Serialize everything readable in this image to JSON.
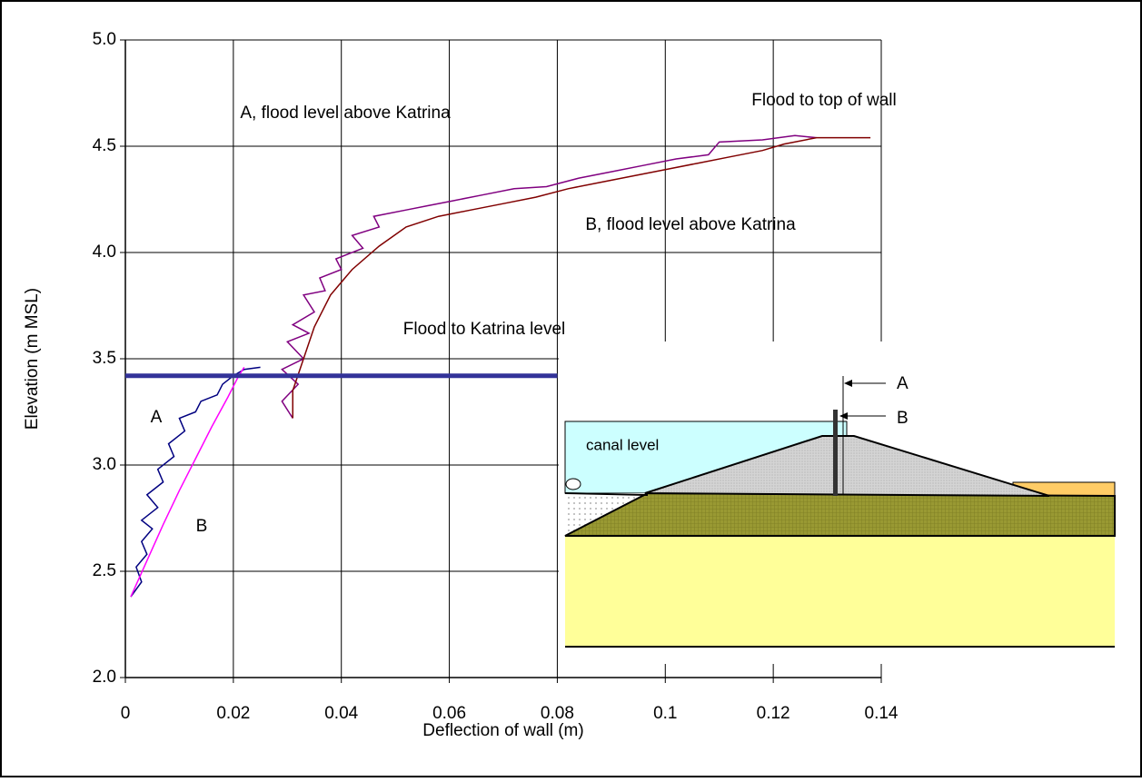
{
  "chart_data": {
    "type": "line",
    "xlabel": "Deflection of wall (m)",
    "ylabel": "Elevation (m MSL)",
    "xlim": [
      0,
      0.14
    ],
    "ylim": [
      2,
      5
    ],
    "xticks": [
      0,
      0.02,
      0.04,
      0.06,
      0.08,
      0.1,
      0.12,
      0.14
    ],
    "yticks": [
      {
        "value": 2,
        "label": "2.0"
      },
      {
        "value": 2.5,
        "label": "2.5"
      },
      {
        "value": 3,
        "label": "3.0"
      },
      {
        "value": 3.5,
        "label": "3.5"
      },
      {
        "value": 4,
        "label": "4.0"
      },
      {
        "value": 4.5,
        "label": "4.5"
      },
      {
        "value": 5,
        "label": "5.0"
      }
    ],
    "grid": true,
    "series": [
      {
        "name": "A",
        "color": "#000080",
        "x": [
          0.001,
          0.003,
          0.002,
          0.004,
          0.003,
          0.005,
          0.003,
          0.006,
          0.004,
          0.007,
          0.006,
          0.009,
          0.008,
          0.011,
          0.01,
          0.013,
          0.014,
          0.017,
          0.018,
          0.02,
          0.022,
          0.025
        ],
        "values": [
          2.38,
          2.45,
          2.52,
          2.58,
          2.64,
          2.7,
          2.74,
          2.8,
          2.86,
          2.92,
          2.98,
          3.04,
          3.1,
          3.16,
          3.22,
          3.25,
          3.3,
          3.33,
          3.38,
          3.42,
          3.45,
          3.46
        ]
      },
      {
        "name": "B",
        "color": "#ff00ff",
        "x": [
          0.001,
          0.004,
          0.007,
          0.01,
          0.013,
          0.016,
          0.019,
          0.021,
          0.022
        ],
        "values": [
          2.38,
          2.55,
          2.72,
          2.88,
          3.03,
          3.18,
          3.32,
          3.42,
          3.46
        ]
      },
      {
        "name": "A, flood level above Katrina",
        "color": "#800080",
        "x": [
          0.031,
          0.029,
          0.032,
          0.029,
          0.033,
          0.03,
          0.034,
          0.031,
          0.035,
          0.033,
          0.037,
          0.036,
          0.04,
          0.039,
          0.044,
          0.042,
          0.047,
          0.046,
          0.052,
          0.056,
          0.06,
          0.066,
          0.072,
          0.078,
          0.084,
          0.09,
          0.096,
          0.102,
          0.108,
          0.11,
          0.118,
          0.124,
          0.128
        ],
        "values": [
          3.22,
          3.3,
          3.38,
          3.45,
          3.5,
          3.58,
          3.62,
          3.66,
          3.72,
          3.8,
          3.82,
          3.88,
          3.92,
          3.97,
          4.02,
          4.08,
          4.12,
          4.17,
          4.2,
          4.22,
          4.24,
          4.27,
          4.3,
          4.31,
          4.35,
          4.38,
          4.41,
          4.44,
          4.46,
          4.52,
          4.53,
          4.55,
          4.54
        ]
      },
      {
        "name": "B, flood level above Katrina",
        "color": "#800000",
        "x": [
          0.031,
          0.031,
          0.033,
          0.035,
          0.038,
          0.042,
          0.047,
          0.052,
          0.058,
          0.064,
          0.07,
          0.076,
          0.082,
          0.088,
          0.094,
          0.1,
          0.106,
          0.112,
          0.118,
          0.122,
          0.128,
          0.138
        ],
        "values": [
          3.22,
          3.35,
          3.5,
          3.65,
          3.8,
          3.92,
          4.03,
          4.12,
          4.17,
          4.2,
          4.23,
          4.26,
          4.3,
          4.33,
          4.36,
          4.39,
          4.42,
          4.45,
          4.48,
          4.51,
          4.54,
          4.54
        ]
      },
      {
        "name": "Flood to Katrina level",
        "color": "#333399",
        "x": [
          0,
          0.08
        ],
        "values": [
          3.42,
          3.42
        ]
      }
    ],
    "annotations": [
      "Flood to top of wall"
    ],
    "inset_labels": [
      "A",
      "B",
      "canal level"
    ]
  }
}
